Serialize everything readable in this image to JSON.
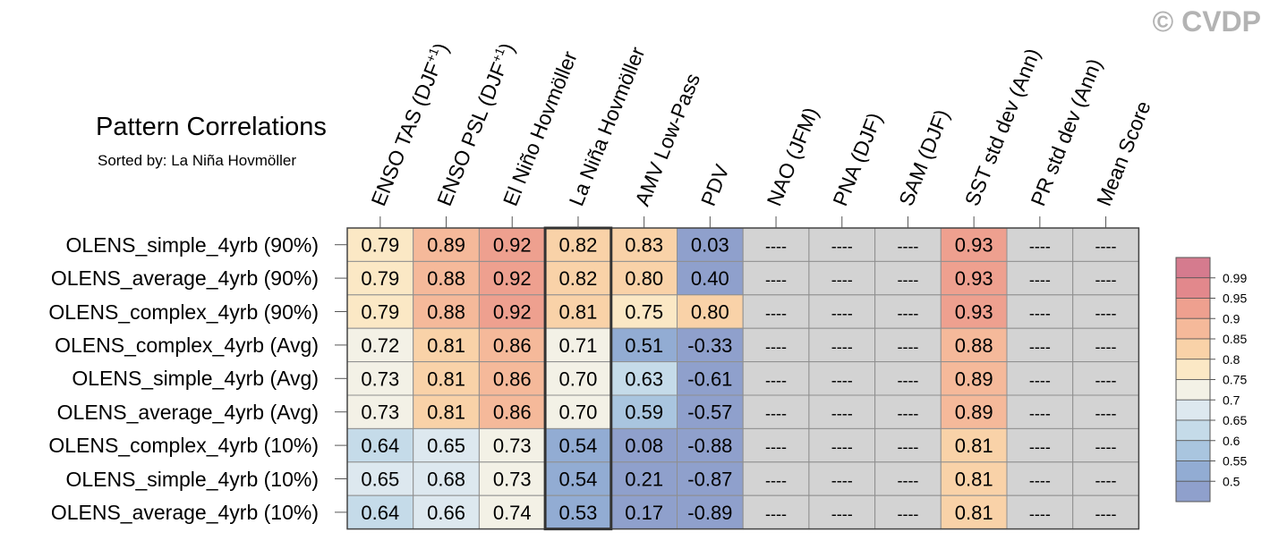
{
  "title": "Pattern Correlations",
  "subtitle": "Sorted by: La Niña Hovmöller",
  "watermark": "© CVDP",
  "chart_data": {
    "type": "heatmap",
    "columns": [
      "ENSO TAS (DJF+1)",
      "ENSO PSL (DJF+1)",
      "El Niño Hovmöller",
      "La Niña Hovmöller",
      "AMV Low-Pass",
      "PDV",
      "NAO (JFM)",
      "PNA (DJF)",
      "SAM (DJF)",
      "SST std dev (Ann)",
      "PR std dev (Ann)",
      "Mean Score"
    ],
    "rows": [
      "OLENS_simple_4yrb (90%)",
      "OLENS_average_4yrb (90%)",
      "OLENS_complex_4yrb (90%)",
      "OLENS_complex_4yrb (Avg)",
      "OLENS_simple_4yrb (Avg)",
      "OLENS_average_4yrb (Avg)",
      "OLENS_complex_4yrb (10%)",
      "OLENS_simple_4yrb (10%)",
      "OLENS_average_4yrb (10%)"
    ],
    "values": [
      [
        "0.79",
        "0.89",
        "0.92",
        "0.82",
        "0.83",
        "0.03",
        "----",
        "----",
        "----",
        "0.93",
        "----",
        "----"
      ],
      [
        "0.79",
        "0.88",
        "0.92",
        "0.82",
        "0.80",
        "0.40",
        "----",
        "----",
        "----",
        "0.93",
        "----",
        "----"
      ],
      [
        "0.79",
        "0.88",
        "0.92",
        "0.81",
        "0.75",
        "0.80",
        "----",
        "----",
        "----",
        "0.93",
        "----",
        "----"
      ],
      [
        "0.72",
        "0.81",
        "0.86",
        "0.71",
        "0.51",
        "-0.33",
        "----",
        "----",
        "----",
        "0.88",
        "----",
        "----"
      ],
      [
        "0.73",
        "0.81",
        "0.86",
        "0.70",
        "0.63",
        "-0.61",
        "----",
        "----",
        "----",
        "0.89",
        "----",
        "----"
      ],
      [
        "0.73",
        "0.81",
        "0.86",
        "0.70",
        "0.59",
        "-0.57",
        "----",
        "----",
        "----",
        "0.89",
        "----",
        "----"
      ],
      [
        "0.64",
        "0.65",
        "0.73",
        "0.54",
        "0.08",
        "-0.88",
        "----",
        "----",
        "----",
        "0.81",
        "----",
        "----"
      ],
      [
        "0.65",
        "0.68",
        "0.73",
        "0.54",
        "0.21",
        "-0.87",
        "----",
        "----",
        "----",
        "0.81",
        "----",
        "----"
      ],
      [
        "0.64",
        "0.66",
        "0.74",
        "0.53",
        "0.17",
        "-0.89",
        "----",
        "----",
        "----",
        "0.81",
        "----",
        "----"
      ]
    ],
    "highlight_column": "La Niña Hovmöller",
    "missing_color": "#d3d3d3",
    "colorbar": {
      "levels": [
        "0.99",
        "0.95",
        "0.9",
        "0.85",
        "0.8",
        "0.75",
        "0.7",
        "0.65",
        "0.6",
        "0.55",
        "0.5"
      ],
      "colors": [
        "#d57b8e",
        "#e2888c",
        "#eea08f",
        "#f5b99a",
        "#f9d2a8",
        "#fbe8c5",
        "#f3f1e6",
        "#dde8ef",
        "#c5dbe9",
        "#a9c5df",
        "#92acd3",
        "#8fa0cc"
      ]
    }
  }
}
